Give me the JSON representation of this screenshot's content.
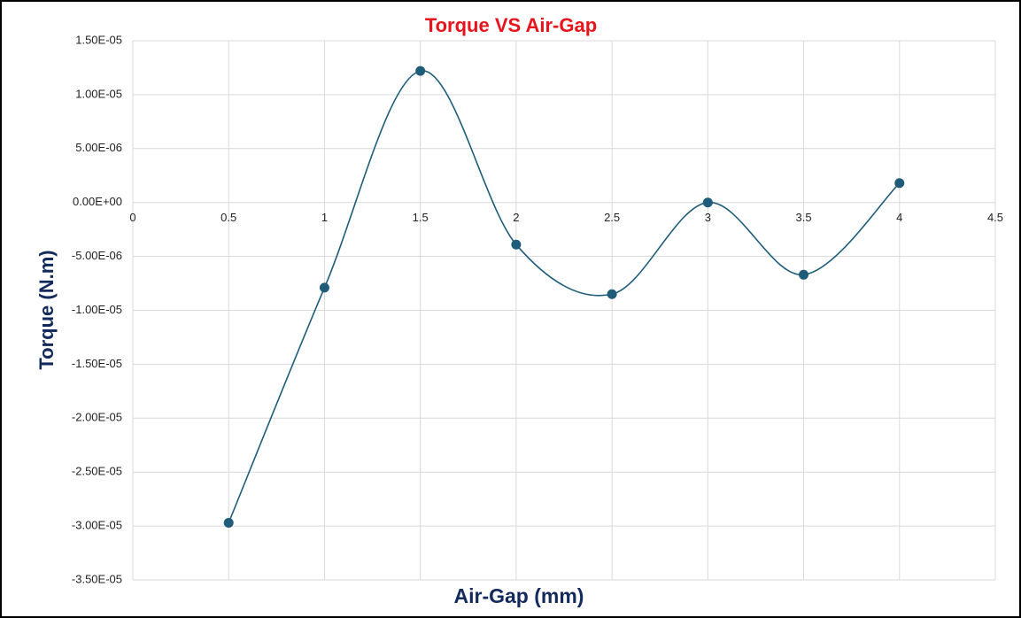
{
  "chart_data": {
    "type": "line",
    "title": "Torque VS Air-Gap",
    "x_label": "Air-Gap (mm)",
    "y_label": "Torque (N.m)",
    "x": [
      0.5,
      1,
      1.5,
      2,
      2.5,
      3,
      3.5,
      4
    ],
    "series": [
      {
        "color": "#1f5c7a",
        "values": [
          -2.97e-05,
          -7.9e-06,
          1.22e-05,
          -3.9e-06,
          -8.5e-06,
          0,
          -6.7e-06,
          1.8e-06
        ]
      }
    ],
    "smooth": true,
    "grid": true,
    "xlim": [
      0,
      4.5
    ],
    "xticks": [
      0,
      0.5,
      1,
      1.5,
      2,
      2.5,
      3,
      3.5,
      4,
      4.5
    ],
    "ylim": [
      -3.5e-05,
      1.5e-05
    ],
    "yticks": [
      {
        "value": -3.5e-05,
        "label": "-3.50E-05"
      },
      {
        "value": -3e-05,
        "label": "-3.00E-05"
      },
      {
        "value": -2.5e-05,
        "label": "-2.50E-05"
      },
      {
        "value": -2e-05,
        "label": "-2.00E-05"
      },
      {
        "value": -1.5e-05,
        "label": "-1.50E-05"
      },
      {
        "value": -1e-05,
        "label": "-1.00E-05"
      },
      {
        "value": -5e-06,
        "label": "-5.00E-06"
      },
      {
        "value": 0,
        "label": "0.00E+00"
      },
      {
        "value": 5e-06,
        "label": "5.00E-06"
      },
      {
        "value": 1e-05,
        "label": "1.00E-05"
      },
      {
        "value": 1.5e-05,
        "label": "1.50E-05"
      }
    ]
  }
}
